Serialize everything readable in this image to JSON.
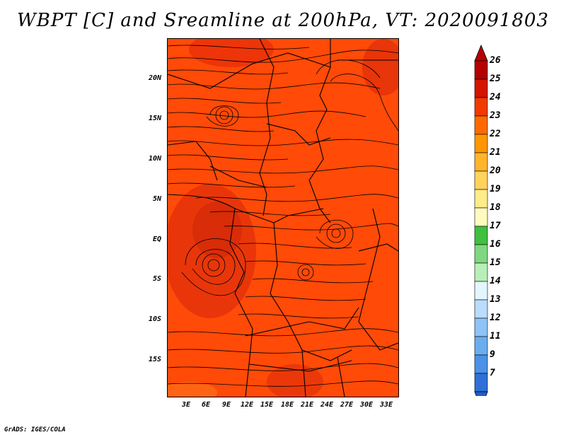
{
  "title": "WBPT [C] and Sreamline at 200hPa, VT: 2020091803",
  "map": {
    "lat_labels": [
      "20N",
      "15N",
      "10N",
      "5N",
      "EQ",
      "5S",
      "10S",
      "15S"
    ],
    "lon_labels": [
      "3E",
      "6E",
      "9E",
      "12E",
      "15E",
      "18E",
      "21E",
      "24E",
      "27E",
      "30E",
      "33E"
    ],
    "field_color": "#ff4a08"
  },
  "colorbar": {
    "labels": [
      "26",
      "25",
      "24",
      "23",
      "22",
      "21",
      "20",
      "19",
      "18",
      "17",
      "16",
      "15",
      "14",
      "13",
      "12",
      "11",
      "9",
      "7"
    ],
    "colors": [
      "#b50000",
      "#d31400",
      "#f03a00",
      "#ff6a00",
      "#ff9600",
      "#ffb52b",
      "#ffd35c",
      "#ffec8a",
      "#fffbbf",
      "#3fc03f",
      "#7fd87f",
      "#b8efb8",
      "#e3f5ff",
      "#b9dcff",
      "#8ec3f5",
      "#6aaef0",
      "#4b91e8",
      "#2f6fd8"
    ],
    "bottom_color": "#1f5ccf"
  },
  "footer": "GrADS: IGES/COLA"
}
